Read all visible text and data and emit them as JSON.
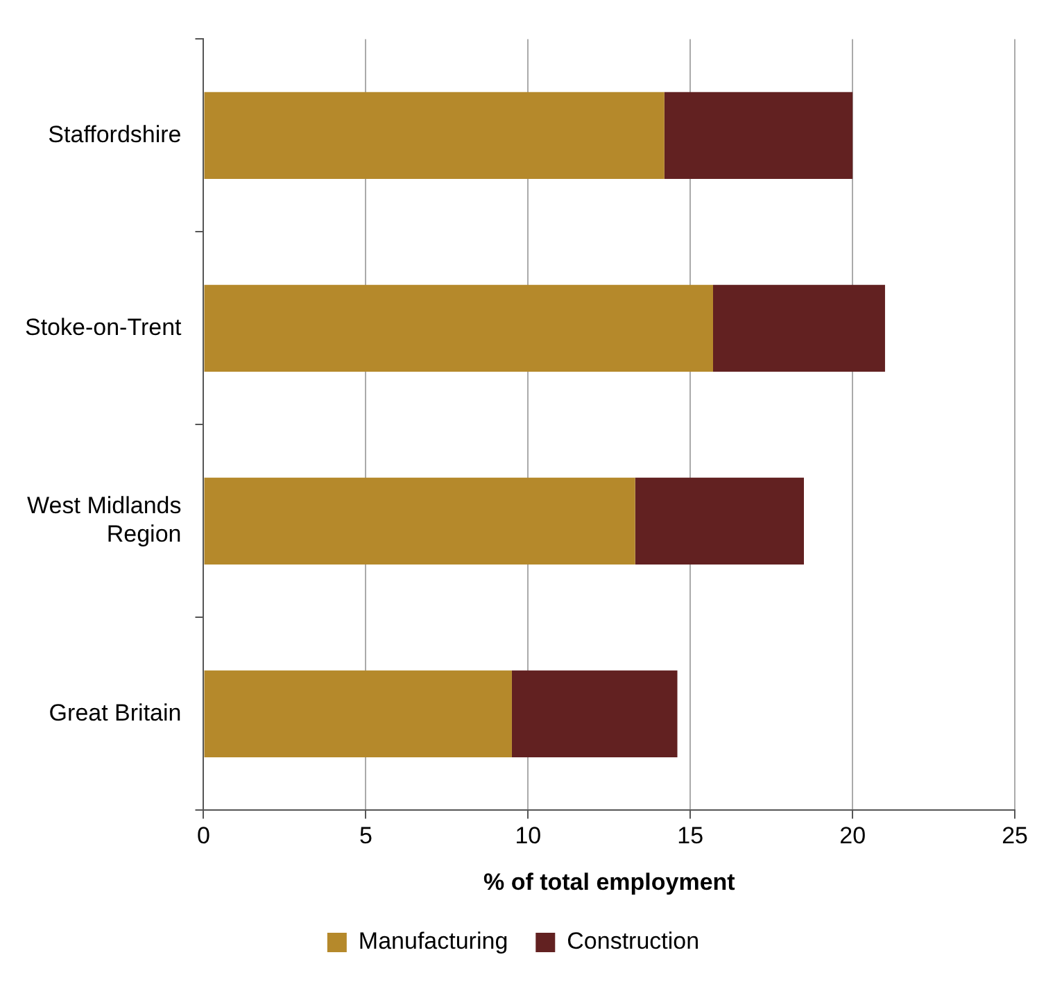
{
  "chart_data": {
    "type": "bar",
    "orientation": "horizontal",
    "stacked": true,
    "categories": [
      "Staffordshire",
      "Stoke-on-Trent",
      "West Midlands Region",
      "Great Britain"
    ],
    "series": [
      {
        "name": "Manufacturing",
        "color": "#b5892b",
        "values": [
          14.2,
          15.7,
          13.3,
          9.5
        ]
      },
      {
        "name": "Construction",
        "color": "#622121",
        "values": [
          5.8,
          5.3,
          5.2,
          5.1
        ]
      }
    ],
    "xlim": [
      0,
      25
    ],
    "xticks": [
      0,
      5,
      10,
      15,
      20,
      25
    ],
    "xlabel": "% of total employment",
    "grid": "x",
    "legend": "bottom"
  }
}
